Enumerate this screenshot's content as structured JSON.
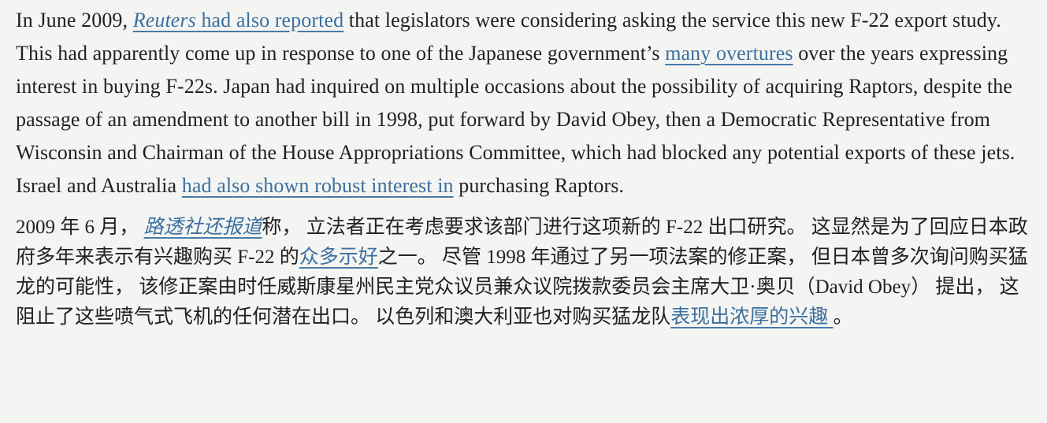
{
  "theme": {
    "background_color": "#f4f5f3",
    "text_color": "#212121",
    "link_color": "#3c6f9f"
  },
  "article": {
    "paragraph_en": {
      "intro": "In June 2009, ",
      "reuters_link": {
        "italic_part": "Reuters",
        "rest_part": " had also reported"
      },
      "after_reuters": " that legislators were considering asking the service this new F-22 export study. This had apparently come up in response to one of the Japanese government’s ",
      "overtures_link": "many overtures",
      "middle": " over the years expressing interest in buying F-22s. Japan had inquired on multiple occasions about the possibility of acquiring Raptors, despite the passage of an amendment to another bill in 1998, put forward by David Obey, then a Democratic Representative from Wisconsin and Chairman of the House Appropriations Committee, which had blocked any potential exports of these jets. Israel and Australia ",
      "interest_link": "had also shown robust interest in",
      "closing": " purchasing Raptors."
    },
    "paragraph_zh": {
      "intro": "2009 年 6 月， ",
      "reuters_link": " 路透社还报道",
      "after_reuters": "称， 立法者正在考虑要求该部门进行这项新的 F-22 出口研究。 这显然是为了回应日本政府多年来表示有兴趣购买 F-22 的",
      "overtures_link": "众多示好",
      "middle": "之一。 尽管 1998 年通过了另一项法案的修正案， 但日本曾多次询问购买猛龙的可能性， 该修正案由时任威斯康星州民主党众议员兼众议院拨款委员会主席大卫·奥贝（David Obey） 提出， 这阻止了这些喷气式飞机的任何潜在出口。 以色列和澳大利亚也对购买猛龙队",
      "interest_link": "表现出浓厚的兴趣 ",
      "closing": "。"
    }
  }
}
